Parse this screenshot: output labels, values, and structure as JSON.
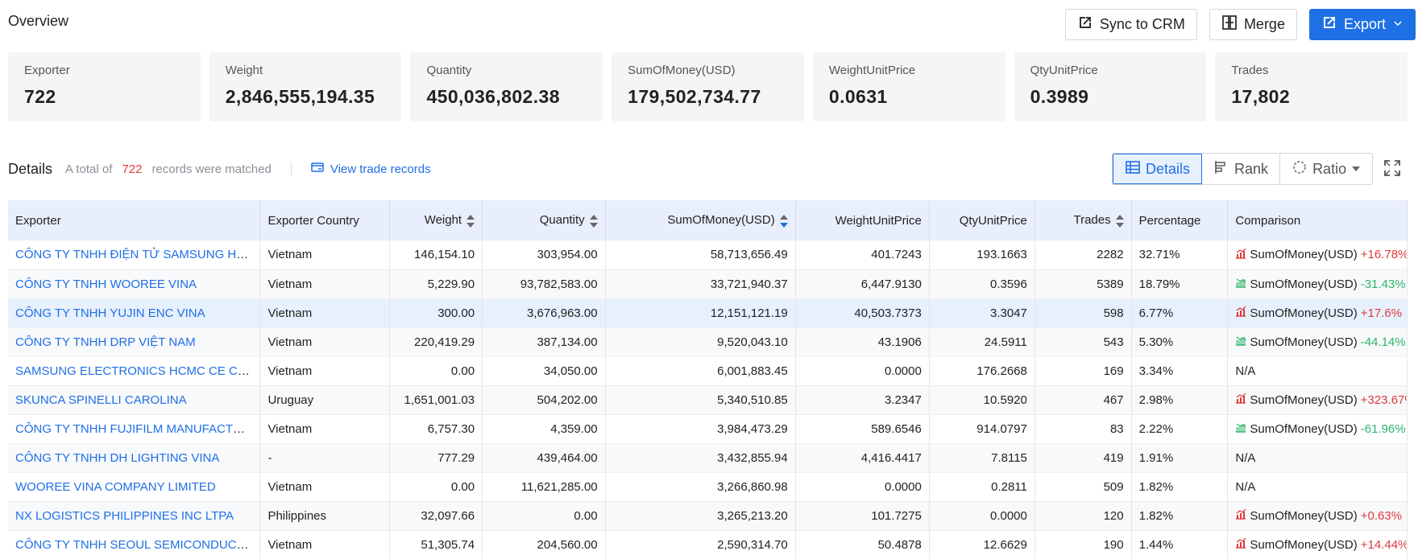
{
  "overview": {
    "title": "Overview"
  },
  "toolbar": {
    "sync_label": "Sync to CRM",
    "merge_label": "Merge",
    "export_label": "Export"
  },
  "stats": [
    {
      "label": "Exporter",
      "value": "722"
    },
    {
      "label": "Weight",
      "value": "2,846,555,194.35"
    },
    {
      "label": "Quantity",
      "value": "450,036,802.38"
    },
    {
      "label": "SumOfMoney(USD)",
      "value": "179,502,734.77"
    },
    {
      "label": "WeightUnitPrice",
      "value": "0.0631"
    },
    {
      "label": "QtyUnitPrice",
      "value": "0.3989"
    },
    {
      "label": "Trades",
      "value": "17,802"
    }
  ],
  "details": {
    "title": "Details",
    "total_prefix": "A total of",
    "total_count": "722",
    "total_suffix": "records were matched",
    "view_link": "View trade records",
    "seg_details": "Details",
    "seg_rank": "Rank",
    "seg_ratio": "Ratio"
  },
  "colors": {
    "accent": "#1f6fe5",
    "positive": "#e0393e",
    "negative": "#2fb46a"
  },
  "table": {
    "headers": {
      "exporter": "Exporter",
      "country": "Exporter Country",
      "weight": "Weight",
      "quantity": "Quantity",
      "sum": "SumOfMoney(USD)",
      "wup": "WeightUnitPrice",
      "qup": "QtyUnitPrice",
      "trades": "Trades",
      "pct": "Percentage",
      "cmp": "Comparison"
    },
    "rows": [
      {
        "exporter": "CÔNG TY TNHH ĐIỆN TỬ SAMSUNG HCMC CE COMPLEX",
        "country": "Vietnam",
        "weight": "146,154.10",
        "quantity": "303,954.00",
        "sum": "58,713,656.49",
        "wup": "401.7243",
        "qup": "193.1663",
        "trades": "2282",
        "pct": "32.71%",
        "cmp_label": "SumOfMoney(USD)",
        "cmp_change": "+16.78%",
        "cmp_dir": "up"
      },
      {
        "exporter": "CÔNG TY TNHH WOOREE VINA",
        "country": "Vietnam",
        "weight": "5,229.90",
        "quantity": "93,782,583.00",
        "sum": "33,721,940.37",
        "wup": "6,447.9130",
        "qup": "0.3596",
        "trades": "5389",
        "pct": "18.79%",
        "cmp_label": "SumOfMoney(USD)",
        "cmp_change": "-31.43%",
        "cmp_dir": "down"
      },
      {
        "exporter": "CÔNG TY TNHH YUJIN ENC VINA",
        "country": "Vietnam",
        "weight": "300.00",
        "quantity": "3,676,963.00",
        "sum": "12,151,121.19",
        "wup": "40,503.7373",
        "qup": "3.3047",
        "trades": "598",
        "pct": "6.77%",
        "cmp_label": "SumOfMoney(USD)",
        "cmp_change": "+17.6%",
        "cmp_dir": "up"
      },
      {
        "exporter": "CÔNG TY TNHH DRP VIỆT NAM",
        "country": "Vietnam",
        "weight": "220,419.29",
        "quantity": "387,134.00",
        "sum": "9,520,043.10",
        "wup": "43.1906",
        "qup": "24.5911",
        "trades": "543",
        "pct": "5.30%",
        "cmp_label": "SumOfMoney(USD)",
        "cmp_change": "-44.14%",
        "cmp_dir": "down"
      },
      {
        "exporter": "SAMSUNG ELECTRONICS HCMC CE COMPLEX",
        "country": "Vietnam",
        "weight": "0.00",
        "quantity": "34,050.00",
        "sum": "6,001,883.45",
        "wup": "0.0000",
        "qup": "176.2668",
        "trades": "169",
        "pct": "3.34%",
        "cmp_label": "N/A",
        "cmp_change": "",
        "cmp_dir": "none"
      },
      {
        "exporter": "SKUNCA SPINELLI CAROLINA",
        "country": "Uruguay",
        "weight": "1,651,001.03",
        "quantity": "504,202.00",
        "sum": "5,340,510.85",
        "wup": "3.2347",
        "qup": "10.5920",
        "trades": "467",
        "pct": "2.98%",
        "cmp_label": "SumOfMoney(USD)",
        "cmp_change": "+323.67%",
        "cmp_dir": "up"
      },
      {
        "exporter": "CÔNG TY TNHH FUJIFILM MANUFACTURING",
        "country": "Vietnam",
        "weight": "6,757.30",
        "quantity": "4,359.00",
        "sum": "3,984,473.29",
        "wup": "589.6546",
        "qup": "914.0797",
        "trades": "83",
        "pct": "2.22%",
        "cmp_label": "SumOfMoney(USD)",
        "cmp_change": "-61.96%",
        "cmp_dir": "down"
      },
      {
        "exporter": "CÔNG TY TNHH DH LIGHTING VINA",
        "country": "-",
        "weight": "777.29",
        "quantity": "439,464.00",
        "sum": "3,432,855.94",
        "wup": "4,416.4417",
        "qup": "7.8115",
        "trades": "419",
        "pct": "1.91%",
        "cmp_label": "N/A",
        "cmp_change": "",
        "cmp_dir": "none"
      },
      {
        "exporter": "WOOREE VINA COMPANY LIMITED",
        "country": "Vietnam",
        "weight": "0.00",
        "quantity": "11,621,285.00",
        "sum": "3,266,860.98",
        "wup": "0.0000",
        "qup": "0.2811",
        "trades": "509",
        "pct": "1.82%",
        "cmp_label": "N/A",
        "cmp_change": "",
        "cmp_dir": "none"
      },
      {
        "exporter": "NX LOGISTICS PHILIPPINES INC LTPA",
        "country": "Philippines",
        "weight": "32,097.66",
        "quantity": "0.00",
        "sum": "3,265,213.20",
        "wup": "101.7275",
        "qup": "0.0000",
        "trades": "120",
        "pct": "1.82%",
        "cmp_label": "SumOfMoney(USD)",
        "cmp_change": "+0.63%",
        "cmp_dir": "up"
      },
      {
        "exporter": "CÔNG TY TNHH SEOUL SEMICONDUCTOR VINA",
        "country": "Vietnam",
        "weight": "51,305.74",
        "quantity": "204,560.00",
        "sum": "2,590,314.70",
        "wup": "50.4878",
        "qup": "12.6629",
        "trades": "190",
        "pct": "1.44%",
        "cmp_label": "SumOfMoney(USD)",
        "cmp_change": "+14.44%",
        "cmp_dir": "up"
      }
    ]
  }
}
